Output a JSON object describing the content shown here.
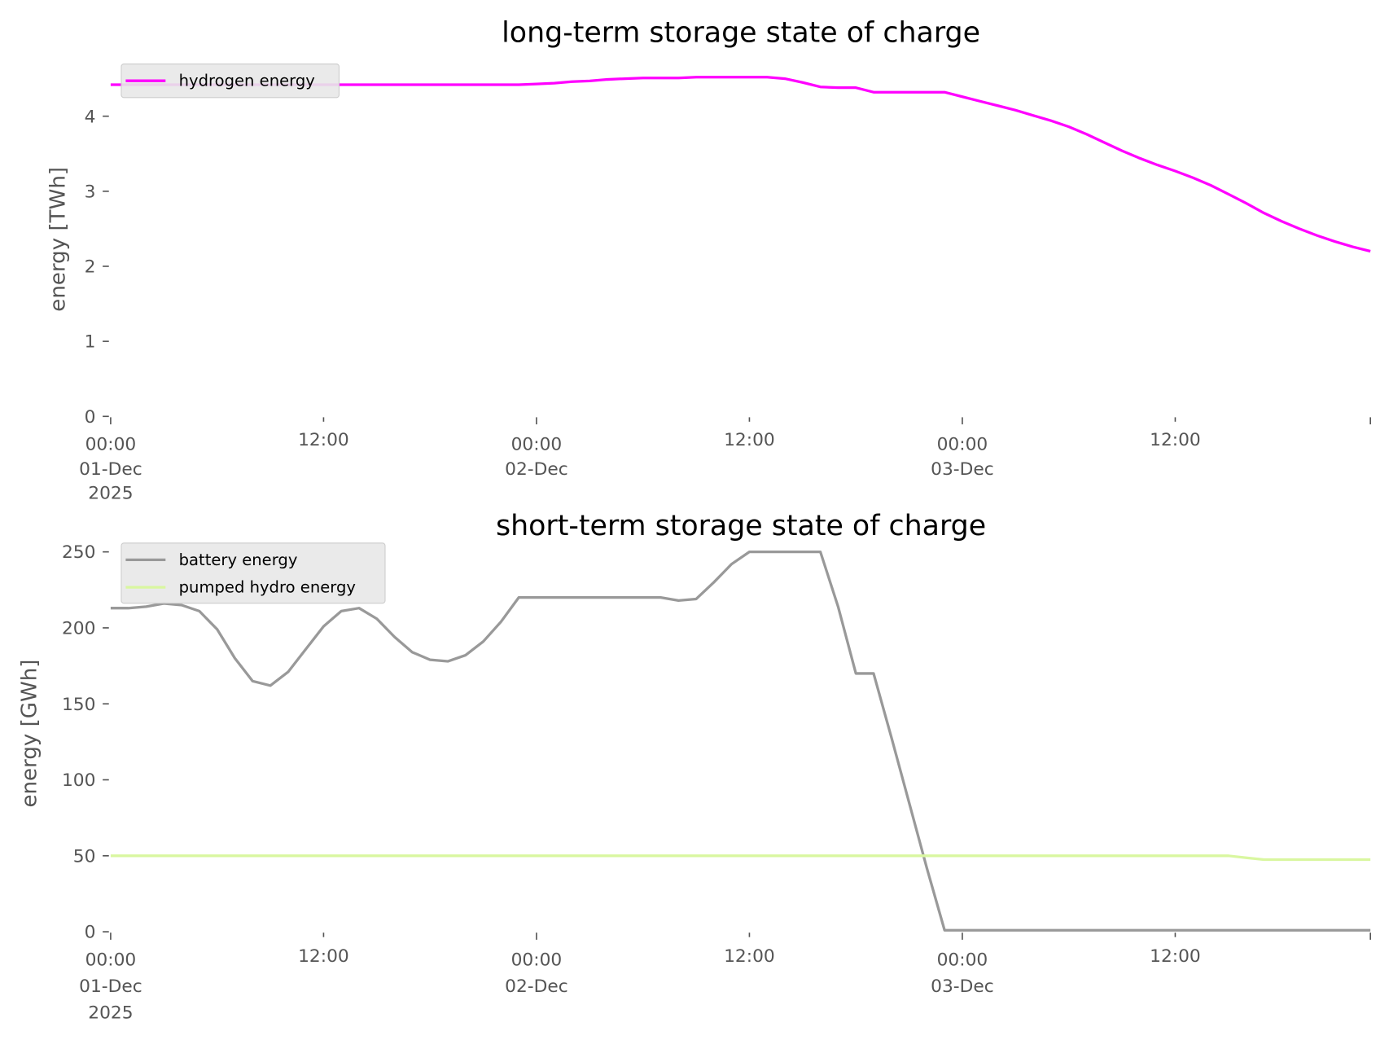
{
  "chart_data": [
    {
      "type": "line",
      "title": "long-term storage state of charge",
      "xlabel": "",
      "ylabel": "energy [TWh]",
      "ylim": [
        0,
        4.52
      ],
      "yticks": [
        "0",
        "1",
        "2",
        "3",
        "4"
      ],
      "xticks": [
        [
          "00:00",
          "01-Dec",
          "2025"
        ],
        [
          "12:00"
        ],
        [
          "00:00",
          "02-Dec"
        ],
        [
          "12:00"
        ],
        [
          "00:00",
          "03-Dec"
        ],
        [
          "12:00"
        ]
      ],
      "xrange": [
        "2025-12-01 00:00",
        "2025-12-03 23:00"
      ],
      "grid": false,
      "legend": "top-left",
      "x_start": "2025-12-01 00:00",
      "x_step": "1 hour",
      "series": [
        {
          "name": "hydrogen energy",
          "color": "#ff00ff",
          "values": [
            4.42,
            4.42,
            4.42,
            4.42,
            4.42,
            4.42,
            4.42,
            4.42,
            4.42,
            4.42,
            4.42,
            4.42,
            4.42,
            4.42,
            4.42,
            4.42,
            4.42,
            4.42,
            4.42,
            4.42,
            4.42,
            4.42,
            4.42,
            4.42,
            4.43,
            4.44,
            4.46,
            4.47,
            4.49,
            4.5,
            4.51,
            4.51,
            4.51,
            4.52,
            4.52,
            4.52,
            4.52,
            4.52,
            4.5,
            4.45,
            4.39,
            4.38,
            4.38,
            4.32,
            4.32,
            4.32,
            4.32,
            4.32,
            4.26,
            4.2,
            4.14,
            4.08,
            4.01,
            3.94,
            3.86,
            3.76,
            3.65,
            3.54,
            3.44,
            3.35,
            3.27,
            3.18,
            3.08,
            2.96,
            2.84,
            2.71,
            2.6,
            2.5,
            2.41,
            2.33,
            2.26,
            2.2
          ]
        }
      ]
    },
    {
      "type": "line",
      "title": "short-term storage state of charge",
      "xlabel": "",
      "ylabel": "energy [GWh]",
      "ylim": [
        0,
        250
      ],
      "yticks": [
        "0",
        "50",
        "100",
        "150",
        "200",
        "250"
      ],
      "xticks": [
        [
          "00:00",
          "01-Dec",
          "2025"
        ],
        [
          "12:00"
        ],
        [
          "00:00",
          "02-Dec"
        ],
        [
          "12:00"
        ],
        [
          "00:00",
          "03-Dec"
        ],
        [
          "12:00"
        ]
      ],
      "xrange": [
        "2025-12-01 00:00",
        "2025-12-03 23:00"
      ],
      "grid": false,
      "legend": "top-left",
      "x_start": "2025-12-01 00:00",
      "x_step": "1 hour",
      "series": [
        {
          "name": "battery energy",
          "color": "#999999",
          "values": [
            213,
            213,
            214,
            216,
            215,
            211,
            199,
            180,
            165,
            162,
            171,
            186,
            201,
            211,
            213,
            206,
            194,
            184,
            179,
            178,
            182,
            191,
            204,
            220,
            220,
            220,
            220,
            220,
            220,
            220,
            220,
            220,
            218,
            219,
            230,
            242,
            250,
            250,
            250,
            250,
            250,
            214,
            170,
            170,
            128,
            85,
            42,
            1,
            1,
            1,
            1,
            1,
            1,
            1,
            1,
            1,
            1,
            1,
            1,
            1,
            1,
            1,
            1,
            1,
            1,
            1,
            1,
            1,
            1,
            1,
            1,
            1
          ]
        },
        {
          "name": "pumped hydro energy",
          "color": "#d9f7a0",
          "values": [
            50,
            50,
            50,
            50,
            50,
            50,
            50,
            50,
            50,
            50,
            50,
            50,
            50,
            50,
            50,
            50,
            50,
            50,
            50,
            50,
            50,
            50,
            50,
            50,
            50,
            50,
            50,
            50,
            50,
            50,
            50,
            50,
            50,
            50,
            50,
            50,
            50,
            50,
            50,
            50,
            50,
            50,
            50,
            50,
            50,
            50,
            50,
            50,
            50,
            50,
            50,
            50,
            50,
            50,
            50,
            50,
            50,
            50,
            50,
            50,
            50,
            50,
            50,
            50,
            48.7,
            47.5,
            47.5,
            47.5,
            47.5,
            47.5,
            47.5,
            47.5
          ]
        }
      ]
    }
  ]
}
